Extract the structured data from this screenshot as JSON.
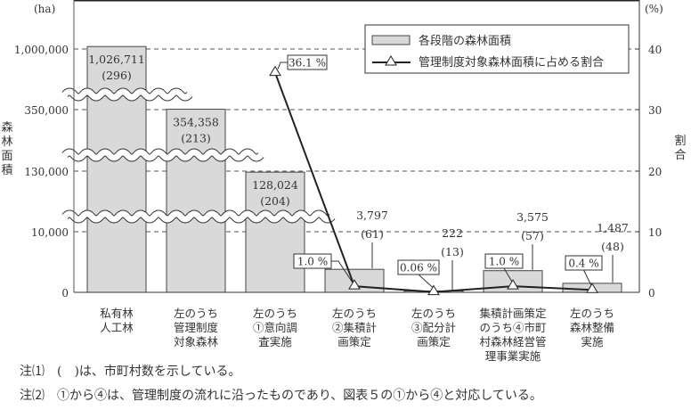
{
  "chart_data": {
    "type": "bar+line",
    "left_unit": "(ha)",
    "right_unit": "(%)",
    "ylabel": "森林面積",
    "y2label": "割合",
    "left_ticks": [
      "1,000,000",
      "350,000",
      "130,000",
      "10,000",
      "0"
    ],
    "left_tick_values": [
      1000000,
      350000,
      130000,
      10000,
      0
    ],
    "right_ticks": [
      "40",
      "30",
      "20",
      "10",
      "0"
    ],
    "right_tick_values": [
      40,
      30,
      20,
      10,
      0
    ],
    "ylim_right": [
      0,
      40
    ],
    "axis_breaks": true,
    "grid": "dashed horizontal",
    "legend_position": "top-right",
    "categories": [
      [
        "私有林",
        "人工林"
      ],
      [
        "左のうち",
        "管理制度",
        "対象森林"
      ],
      [
        "左のうち",
        "①意向調",
        "査実施"
      ],
      [
        "左のうち",
        "②集積計",
        "画策定"
      ],
      [
        "左のうち",
        "③配分計",
        "画策定"
      ],
      [
        "集積計画策定",
        "のうち④市町",
        "村森林経営管",
        "理事業実施"
      ],
      [
        "左のうち",
        "森林整備",
        "実施"
      ]
    ],
    "series": [
      {
        "name": "各段階の森林面積",
        "type": "bar",
        "color": "#d9d9d9",
        "values": [
          1026711,
          354358,
          128024,
          3797,
          222,
          3575,
          1487
        ],
        "labels": [
          "1,026,711",
          "354,358",
          "128,024",
          "3,797",
          "222",
          "3,575",
          "1,487"
        ],
        "counts": [
          "(296)",
          "(213)",
          "(204)",
          "(61)",
          "(13)",
          "(57)",
          "(48)"
        ]
      },
      {
        "name": "管理制度対象森林面積に占める割合",
        "type": "line",
        "marker": "triangle",
        "color": "#222222",
        "values": [
          null,
          null,
          36.1,
          1.0,
          0.06,
          1.0,
          0.4
        ],
        "labels": [
          null,
          null,
          "36.1 %",
          "1.0 %",
          "0.06 %",
          "1.0 %",
          "0.4 %"
        ]
      }
    ]
  },
  "notes": [
    "注⑴　(　)は、市町村数を示している。",
    "注⑵　①から④は、管理制度の流れに沿ったものであり、図表５の①から④と対応している。"
  ]
}
